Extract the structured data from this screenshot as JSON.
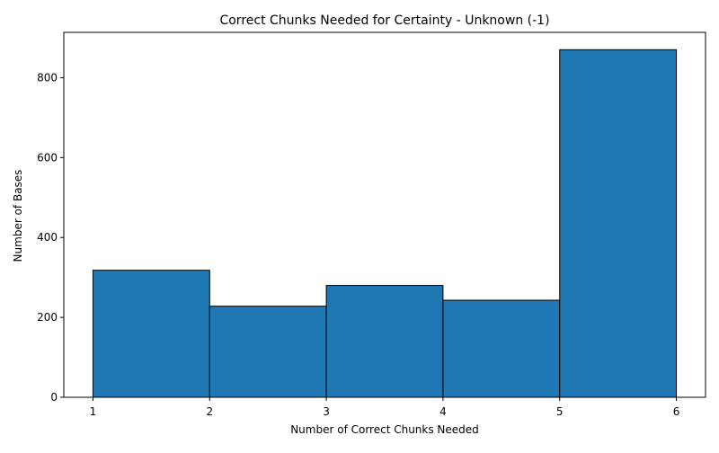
{
  "chart_data": {
    "type": "bar",
    "title": "Correct Chunks Needed for Certainty - Unknown (-1)",
    "xlabel": "Number of Correct Chunks Needed",
    "ylabel": "Number of Bases",
    "bins": [
      {
        "start": 1,
        "end": 2,
        "value": 318
      },
      {
        "start": 2,
        "end": 3,
        "value": 228
      },
      {
        "start": 3,
        "end": 4,
        "value": 280
      },
      {
        "start": 4,
        "end": 5,
        "value": 243
      },
      {
        "start": 5,
        "end": 6,
        "value": 870
      }
    ],
    "x_ticks": [
      1,
      2,
      3,
      4,
      5,
      6
    ],
    "y_ticks": [
      0,
      200,
      400,
      600,
      800
    ],
    "xlim": [
      0.75,
      6.25
    ],
    "ylim": [
      0,
      913.5
    ],
    "bar_color": "#1f77b4",
    "edge_color": "#000000",
    "grid": false,
    "legend": "none"
  }
}
